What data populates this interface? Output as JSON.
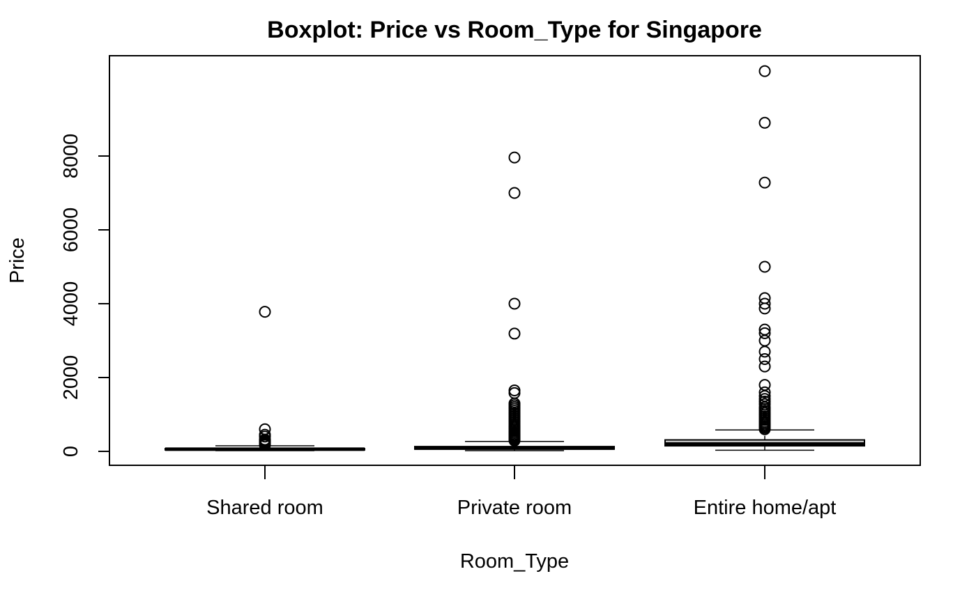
{
  "chart_data": {
    "type": "boxplot",
    "title": "Boxplot: Price vs Room_Type for Singapore",
    "xlabel": "Room_Type",
    "ylabel": "Price",
    "ylim": [
      -400,
      10400
    ],
    "yticks": [
      0,
      2000,
      4000,
      6000,
      8000
    ],
    "ytick_labels": [
      "0",
      "2000",
      "4000",
      "6000",
      "8000"
    ],
    "categories": [
      "Shared room",
      "Private room",
      "Entire home/apt"
    ],
    "grid": false,
    "legend": "none",
    "colors": {
      "box_fill": "#d3d3d3",
      "stroke": "#000000",
      "background": "#ffffff"
    },
    "boxes": [
      {
        "category": "Shared room",
        "whisker_low": 20,
        "q1": 40,
        "median": 60,
        "q3": 75,
        "whisker_high": 150,
        "outliers": [
          170,
          200,
          230,
          260,
          290,
          320,
          400,
          450,
          600,
          3780
        ]
      },
      {
        "category": "Private room",
        "whisker_low": 20,
        "q1": 60,
        "median": 90,
        "q3": 130,
        "whisker_high": 270,
        "outliers": [
          290,
          320,
          350,
          380,
          400,
          430,
          460,
          500,
          540,
          580,
          620,
          660,
          700,
          750,
          800,
          850,
          900,
          950,
          1000,
          1050,
          1100,
          1150,
          1200,
          1250,
          1300,
          1580,
          1650,
          3190,
          4000,
          7000,
          7960
        ]
      },
      {
        "category": "Entire home/apt",
        "whisker_low": 30,
        "q1": 150,
        "median": 200,
        "q3": 310,
        "whisker_high": 580,
        "outliers": [
          600,
          640,
          680,
          720,
          760,
          800,
          850,
          900,
          950,
          1000,
          1050,
          1100,
          1150,
          1200,
          1280,
          1350,
          1420,
          1500,
          1600,
          1800,
          2300,
          2500,
          2700,
          3000,
          3200,
          3300,
          3870,
          4000,
          4150,
          5000,
          7280,
          8900,
          10300
        ]
      }
    ]
  }
}
